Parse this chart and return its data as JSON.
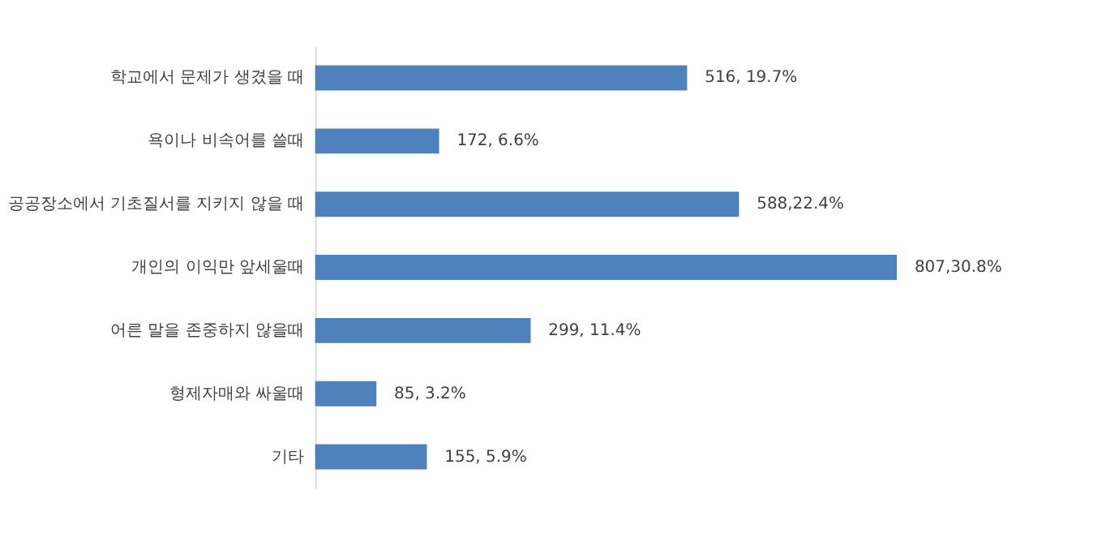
{
  "chart_data": {
    "type": "bar",
    "orientation": "horizontal",
    "categories": [
      "학교에서 문제가 생겼을 때",
      "욕이나 비속어를 쓸때",
      "공공장소에서 기초질서를 지키지 않을 때",
      "개인의 이익만 앞세울때",
      "어른 말을 존중하지 않을때",
      "형제자매와 싸울때",
      "기타"
    ],
    "values": [
      516,
      172,
      588,
      807,
      299,
      85,
      155
    ],
    "value_labels": [
      "516, 19.7%",
      "172, 6.6%",
      "588,22.4%",
      "807,30.8%",
      "299, 11.4%",
      "85, 3.2%",
      "155, 5.9%"
    ],
    "color": "#4f81bd"
  }
}
